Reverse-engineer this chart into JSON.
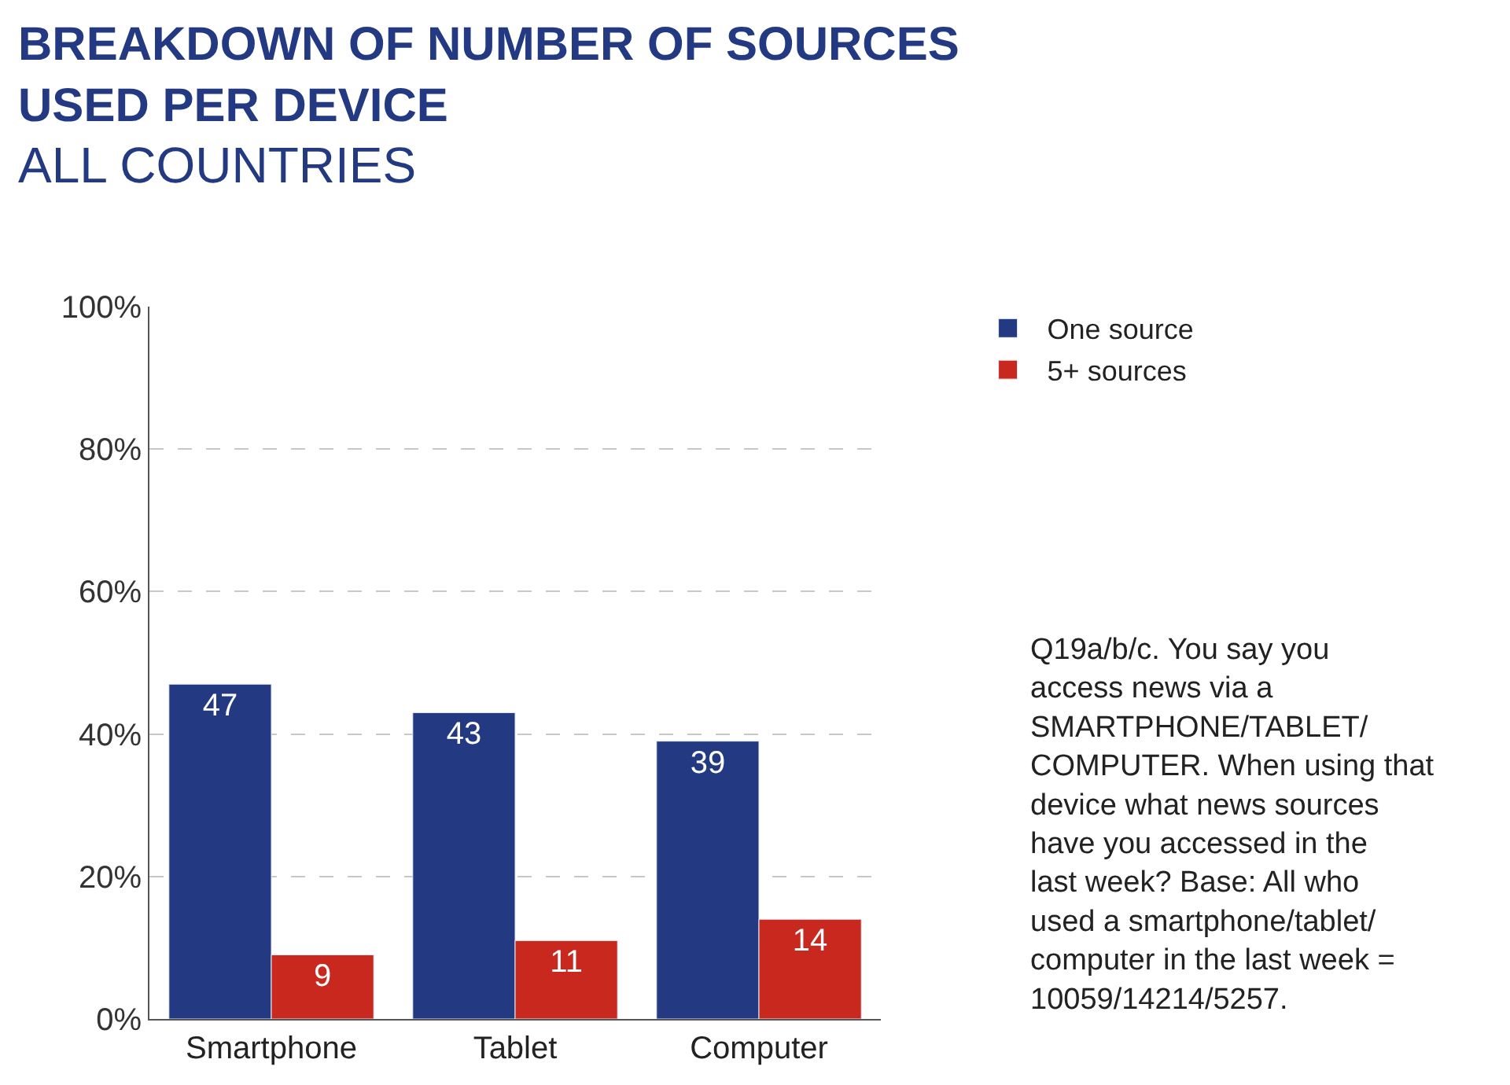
{
  "chart_data": {
    "type": "bar",
    "title": "BREAKDOWN OF NUMBER OF SOURCES USED PER DEVICE",
    "subtitle": "ALL COUNTRIES",
    "categories": [
      "Smartphone",
      "Tablet",
      "Computer"
    ],
    "series": [
      {
        "name": "One source",
        "color": "#233a83",
        "values": [
          47,
          43,
          39
        ]
      },
      {
        "name": "5+ sources",
        "color": "#c8281e",
        "values": [
          9,
          11,
          14
        ]
      }
    ],
    "ylim": [
      0,
      100
    ],
    "yticks": [
      {
        "value": 0,
        "label": "0%"
      },
      {
        "value": 20,
        "label": "20%"
      },
      {
        "value": 40,
        "label": "40%"
      },
      {
        "value": 60,
        "label": "60%"
      },
      {
        "value": 80,
        "label": "80%"
      },
      {
        "value": 100,
        "label": "100%"
      }
    ],
    "grid": "y",
    "legend": "top right",
    "data_labels": true,
    "annotations": [
      "Q19a/b/c. You say you access news via a SMARTPHONE/TABLET/COMPUTER. When using that device what news sources have you accessed in the last week? Base: All who used a smartphone/tablet/computer in the last week = 10059/14214/5257."
    ]
  }
}
